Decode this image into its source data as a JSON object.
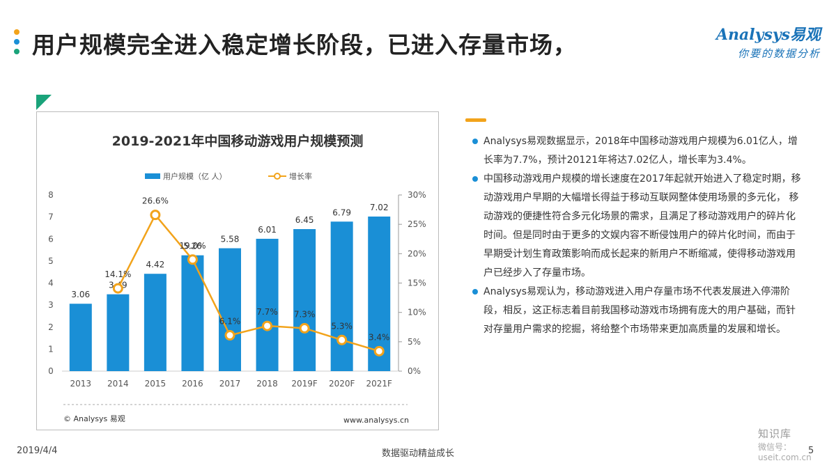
{
  "header": {
    "title": "用户规模完全进入稳定增长阶段，已进入存量市场，",
    "dot_colors": [
      "#f2a31b",
      "#1a8fd6",
      "#1aa37a"
    ],
    "logo_main": "Analysys易观",
    "logo_sub": "你要的数据分析"
  },
  "chart_data": {
    "type": "bar",
    "title": "2019-2021年中国移动游戏用户规模预测",
    "categories": [
      "2013",
      "2014",
      "2015",
      "2016",
      "2017",
      "2018",
      "2019F",
      "2020F",
      "2021F"
    ],
    "series": [
      {
        "name": "用户规模（亿 人）",
        "type": "bar",
        "axis": "left",
        "color": "#1a8fd6",
        "values": [
          3.06,
          3.49,
          4.42,
          5.26,
          5.58,
          6.01,
          6.45,
          6.79,
          7.02
        ],
        "labels": [
          "3.06",
          "3.49",
          "4.42",
          "5.26",
          "5.58",
          "6.01",
          "6.45",
          "6.79",
          "7.02"
        ]
      },
      {
        "name": "增长率",
        "type": "line",
        "axis": "right",
        "color": "#f2a31b",
        "values": [
          null,
          14.1,
          26.6,
          19.0,
          6.1,
          7.7,
          7.3,
          5.3,
          3.4
        ],
        "labels": [
          "",
          "14.1%",
          "26.6%",
          "19.0%",
          "6.1%",
          "7.7%",
          "7.3%",
          "5.3%",
          "3.4%"
        ]
      }
    ],
    "left_axis": {
      "ylim": [
        0,
        8
      ],
      "ticks": [
        "0",
        "1",
        "2",
        "3",
        "4",
        "5",
        "6",
        "7",
        "8"
      ]
    },
    "right_axis": {
      "ylim": [
        0,
        30
      ],
      "ticks": [
        "0%",
        "5%",
        "10%",
        "15%",
        "20%",
        "25%",
        "30%"
      ]
    },
    "legend_position": "top",
    "grid": false,
    "source_left": "© Analysys 易观",
    "source_right": "www.analysys.cn"
  },
  "bullets": [
    "Analysys易观数据显示，2018年中国移动游戏用户规模为6.01亿人，增长率为7.7%，预计20121年将达7.02亿人，增长率为3.4%。",
    "中国移动游戏用户规模的增长速度在2017年起就开始进入了稳定时期，移动游戏用户早期的大幅增长得益于移动互联网整体使用场景的多元化， 移动游戏的便捷性符合多元化场景的需求，且满足了移动游戏用户的碎片化时间。但是同时由于更多的文娱内容不断侵蚀用户的碎片化时间，而由于早期受计划生育政策影响而成长起来的新用户不断缩减，使得移动游戏用户已经步入了存量市场。",
    "Analysys易观认为，移动游戏进入用户存量市场不代表发展进入停滞阶段，相反，这正标志着目前我国移动游戏市场拥有庞大的用户基础，而针对存量用户需求的挖掘，将给整个市场带来更加高质量的发展和增长。"
  ],
  "footer": {
    "date": "2019/4/4",
    "center": "数据驱动精益成长",
    "page": "5"
  },
  "watermark": {
    "line1": "知识库",
    "line2": "微信号：useit.com.cn"
  }
}
